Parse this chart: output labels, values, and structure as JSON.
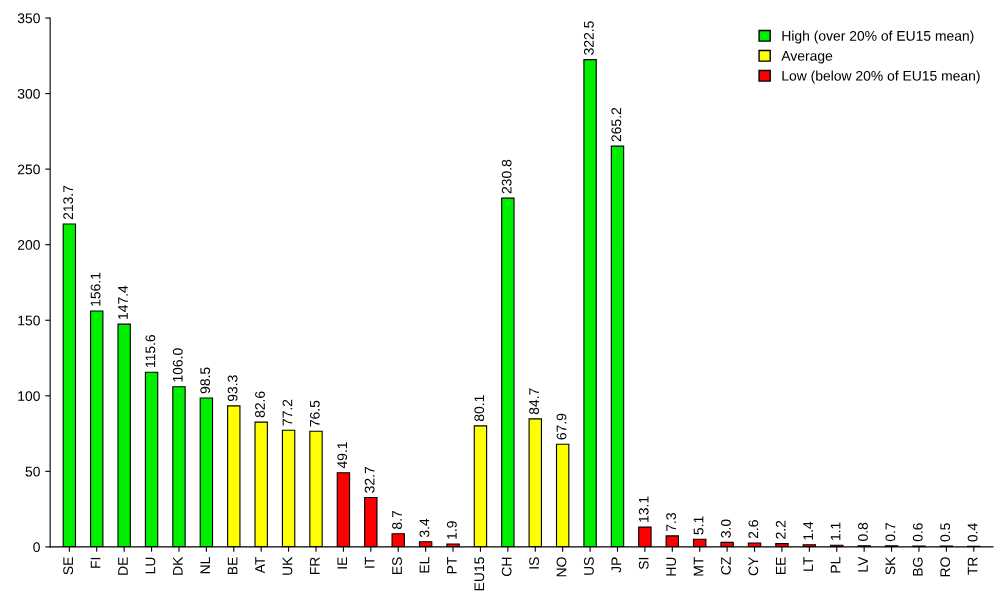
{
  "chart_data": {
    "type": "bar",
    "categories": [
      "SE",
      "FI",
      "DE",
      "LU",
      "DK",
      "NL",
      "BE",
      "AT",
      "UK",
      "FR",
      "IE",
      "IT",
      "ES",
      "EL",
      "PT",
      "EU15",
      "CH",
      "IS",
      "NO",
      "US",
      "JP",
      "SI",
      "HU",
      "MT",
      "CZ",
      "CY",
      "EE",
      "LT",
      "PL",
      "LV",
      "SK",
      "BG",
      "RO",
      "TR"
    ],
    "series": [
      {
        "name": "High (over 20% of EU15 mean)",
        "color": "#00ee00",
        "values": [
          213.7,
          156.1,
          147.4,
          115.6,
          106.0,
          98.5,
          null,
          null,
          null,
          null,
          null,
          null,
          null,
          null,
          null,
          null,
          230.8,
          null,
          null,
          322.5,
          265.2,
          null,
          null,
          null,
          null,
          null,
          null,
          null,
          null,
          null,
          null,
          null,
          null,
          null
        ],
        "value_labels": [
          "213.7",
          "156.1",
          "147.4",
          "115.6",
          "106.0",
          "98.5",
          null,
          null,
          null,
          null,
          null,
          null,
          null,
          null,
          null,
          null,
          "230.8",
          null,
          null,
          "322.5",
          "265.2",
          null,
          null,
          null,
          null,
          null,
          null,
          null,
          null,
          null,
          null,
          null,
          null,
          null
        ]
      },
      {
        "name": "Average",
        "color": "#ffff00",
        "values": [
          null,
          null,
          null,
          null,
          null,
          null,
          93.3,
          82.6,
          77.2,
          76.5,
          null,
          null,
          null,
          null,
          null,
          80.1,
          null,
          84.7,
          67.9,
          null,
          null,
          null,
          null,
          null,
          null,
          null,
          null,
          null,
          null,
          null,
          null,
          null,
          null,
          null
        ],
        "value_labels": [
          null,
          null,
          null,
          null,
          null,
          null,
          "93.3",
          "82.6",
          "77.2",
          "76.5",
          null,
          null,
          null,
          null,
          null,
          "80.1",
          null,
          "84.7",
          "67.9",
          null,
          null,
          null,
          null,
          null,
          null,
          null,
          null,
          null,
          null,
          null,
          null,
          null,
          null,
          null
        ]
      },
      {
        "name": "Low (below 20% of EU15 mean)",
        "color": "#ff0000",
        "values": [
          null,
          null,
          null,
          null,
          null,
          null,
          null,
          null,
          null,
          null,
          49.1,
          32.7,
          8.7,
          3.4,
          1.9,
          null,
          null,
          null,
          null,
          null,
          null,
          13.1,
          7.3,
          5.1,
          3.0,
          2.6,
          2.2,
          1.4,
          1.1,
          0.8,
          0.7,
          0.6,
          0.5,
          0.4
        ],
        "value_labels": [
          null,
          null,
          null,
          null,
          null,
          null,
          null,
          null,
          null,
          null,
          "49.1",
          "32.7",
          "8.7",
          "3.4",
          "1.9",
          null,
          null,
          null,
          null,
          null,
          null,
          "13.1",
          "7.3",
          "5.1",
          "3.0",
          "2.6",
          "2.2",
          "1.4",
          "1.1",
          "0.8",
          "0.7",
          "0.6",
          "0.5",
          "0.4"
        ]
      }
    ],
    "ylim": [
      0,
      350
    ],
    "yticks": [
      0,
      50,
      100,
      150,
      200,
      250,
      300,
      350
    ],
    "grid": false,
    "legend": "top right"
  }
}
